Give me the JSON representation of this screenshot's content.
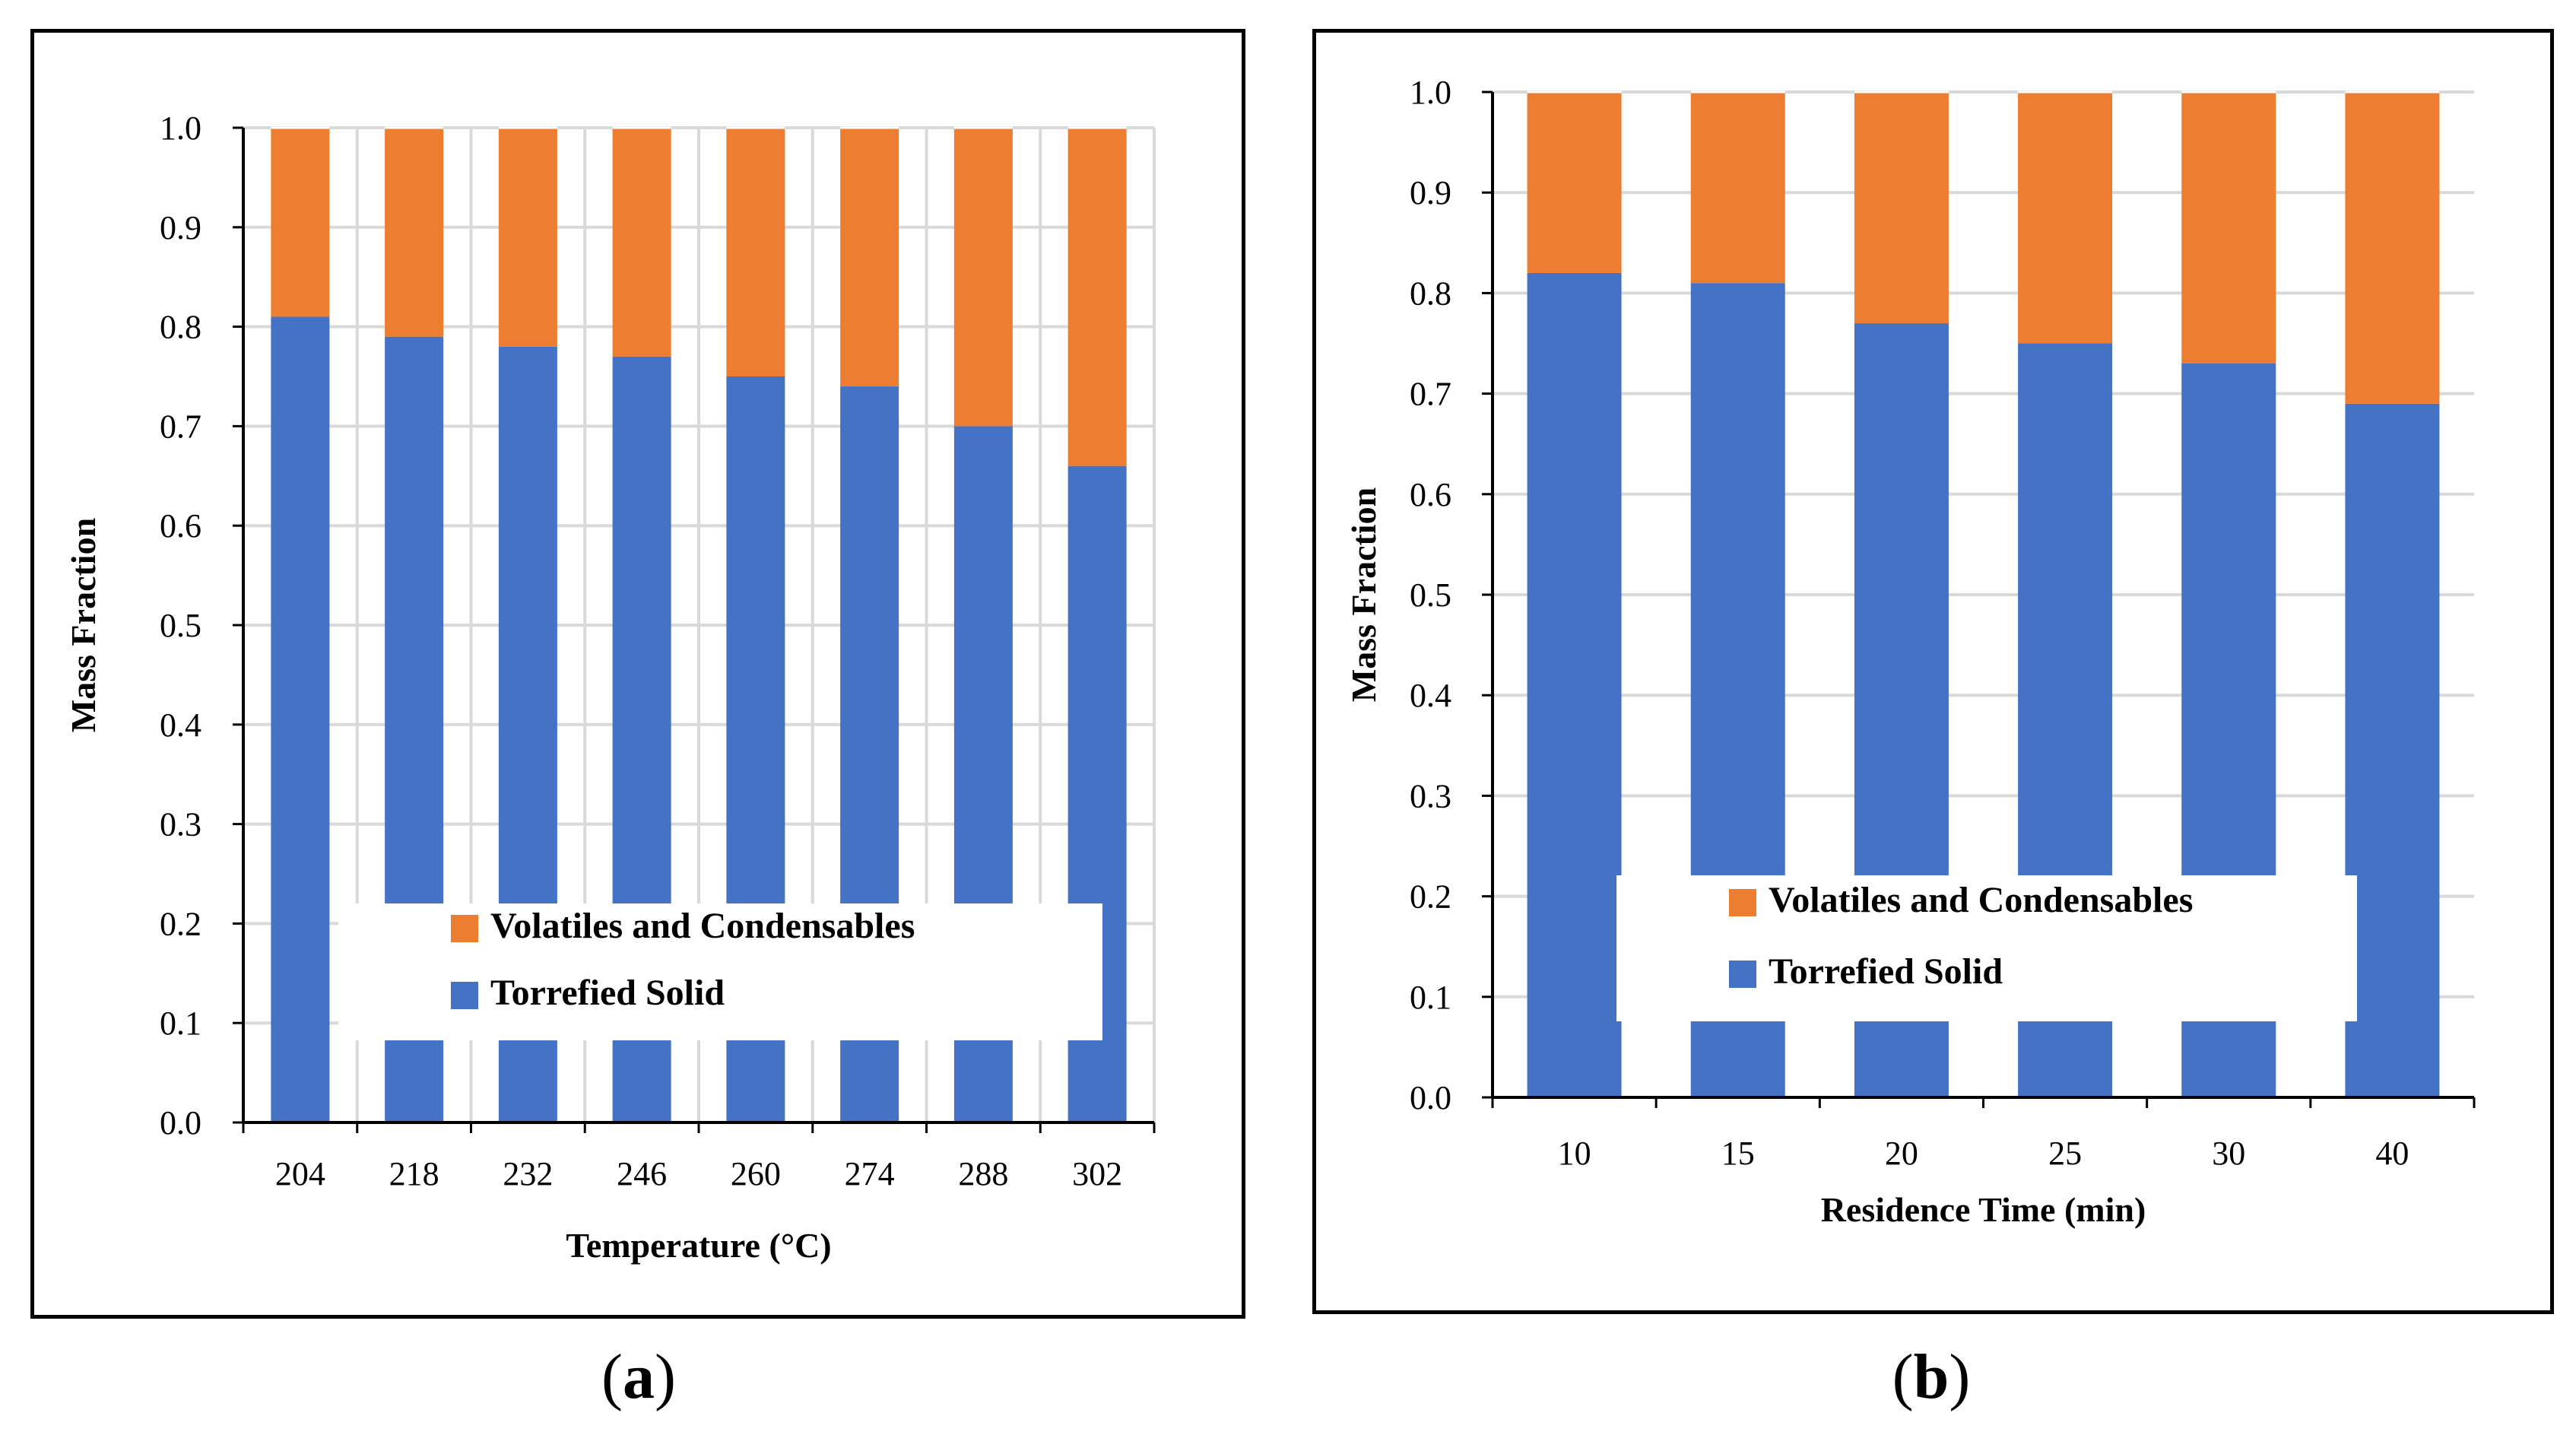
{
  "chart_data": [
    {
      "type": "bar",
      "stacked": true,
      "panel_label": "a",
      "xlabel": "Temperature (°C)",
      "ylabel": "Mass Fraction",
      "ylim": [
        0,
        1.0
      ],
      "yticks": [
        "0.0",
        "0.1",
        "0.2",
        "0.3",
        "0.4",
        "0.5",
        "0.6",
        "0.7",
        "0.8",
        "0.9",
        "1.0"
      ],
      "categories": [
        "204",
        "218",
        "232",
        "246",
        "260",
        "274",
        "288",
        "302"
      ],
      "grid": "both",
      "legend_position": "lower-center",
      "series": [
        {
          "name": "Torrefied Solid",
          "color": "#4472C4",
          "values": [
            0.81,
            0.79,
            0.78,
            0.77,
            0.75,
            0.74,
            0.7,
            0.66
          ]
        },
        {
          "name": "Volatiles and Condensables",
          "color": "#ED7D31",
          "values": [
            0.19,
            0.21,
            0.22,
            0.23,
            0.25,
            0.26,
            0.3,
            0.34
          ]
        }
      ]
    },
    {
      "type": "bar",
      "stacked": true,
      "panel_label": "b",
      "xlabel": "Residence Time (min)",
      "ylabel": "Mass Fraction",
      "ylim": [
        0,
        1.0
      ],
      "yticks": [
        "0.0",
        "0.1",
        "0.2",
        "0.3",
        "0.4",
        "0.5",
        "0.6",
        "0.7",
        "0.8",
        "0.9",
        "1.0"
      ],
      "categories": [
        "10",
        "15",
        "20",
        "25",
        "30",
        "40"
      ],
      "grid": "horizontal",
      "legend_position": "lower-center",
      "series": [
        {
          "name": "Torrefied Solid",
          "color": "#4472C4",
          "values": [
            0.82,
            0.81,
            0.77,
            0.75,
            0.73,
            0.69
          ]
        },
        {
          "name": "Volatiles and Condensables",
          "color": "#ED7D31",
          "values": [
            0.18,
            0.19,
            0.23,
            0.25,
            0.27,
            0.31
          ]
        }
      ]
    }
  ],
  "captions": {
    "a": "a",
    "b": "b"
  },
  "colors": {
    "grid": "#D9D9D9",
    "axis": "#000000",
    "legend_bg": "#FFFFFF"
  }
}
